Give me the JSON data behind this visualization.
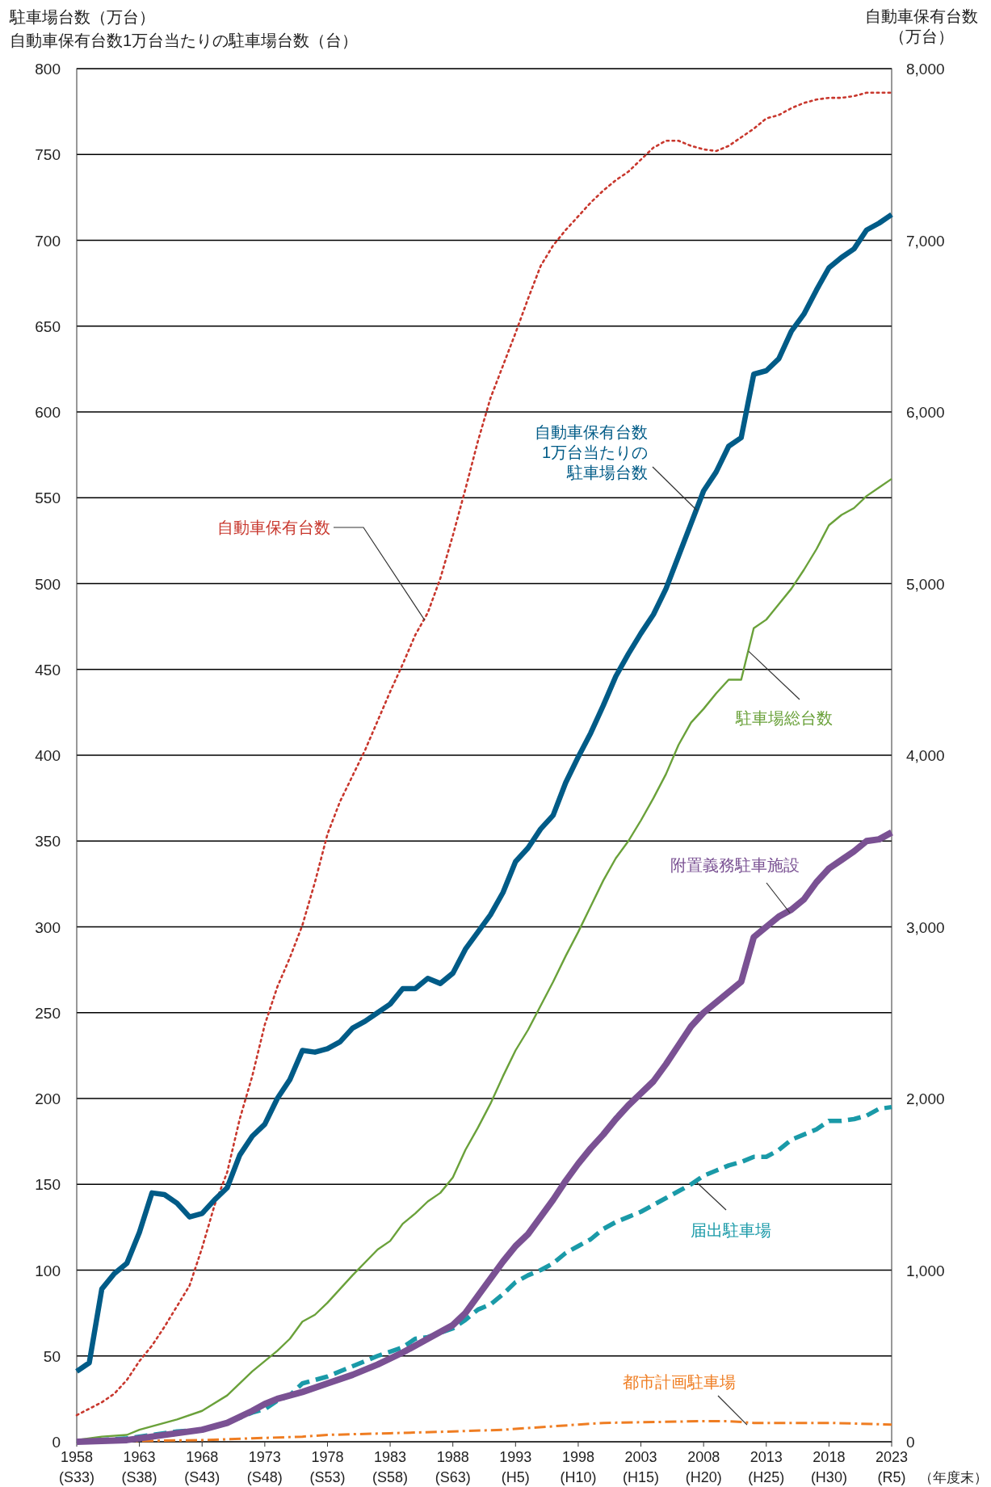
{
  "chart_data": {
    "type": "line",
    "ylabel": "駐車場台数（万台）",
    "y2label": "自動車保有台数（万台）",
    "xlim": [
      1958,
      2023
    ],
    "xticks": [
      1958,
      1963,
      1968,
      1973,
      1978,
      1983,
      1988,
      1993,
      1998,
      2003,
      2008,
      2013,
      2018,
      2023
    ],
    "ylim": [
      0,
      800
    ],
    "yticks": [
      0,
      50,
      100,
      150,
      200,
      250,
      300,
      350,
      400,
      450,
      500,
      550,
      600,
      650,
      700,
      750,
      800
    ],
    "y2lim": [
      0,
      8000
    ],
    "y2ticks": [
      0,
      {
        "value": 1000,
        "label": "1,000"
      },
      {
        "value": 2000,
        "label": "2,000"
      },
      {
        "value": 3000,
        "label": "3,000"
      },
      {
        "value": 4000,
        "label": "4,000"
      },
      {
        "value": 5000,
        "label": "5,000"
      },
      {
        "value": 6000,
        "label": "6,000"
      },
      {
        "value": 7000,
        "label": "7,000"
      },
      {
        "value": 8000,
        "label": "8,000"
      }
    ],
    "grid": "y",
    "annotations": [
      "(S33)",
      "(S38)",
      "(S43)",
      "(S48)",
      "(S53)",
      "(S58)",
      "(S63)",
      "(H5)",
      "(H10)",
      "(H15)",
      "(H20)",
      "(H25)",
      "(H30)",
      "(R5)",
      "（年度末）",
      "自動車保有台数1万台当たりの駐車場台数（台）"
    ],
    "series": [
      {
        "name": "自動車保有台数",
        "color": "#c8372d",
        "axis": "y2",
        "line_style": "dotted",
        "x": [
          1958,
          1960,
          1961,
          1962,
          1963,
          1964,
          1965,
          1966,
          1967,
          1968,
          1969,
          1970,
          1971,
          1972,
          1973,
          1974,
          1975,
          1976,
          1977,
          1978,
          1979,
          1980,
          1981,
          1982,
          1983,
          1984,
          1985,
          1986,
          1987,
          1988,
          1989,
          1990,
          1991,
          1992,
          1993,
          1994,
          1995,
          1996,
          1997,
          1998,
          1999,
          2000,
          2001,
          2002,
          2003,
          2004,
          2005,
          2006,
          2007,
          2008,
          2009,
          2010,
          2011,
          2012,
          2013,
          2014,
          2015,
          2016,
          2017,
          2018,
          2019,
          2020,
          2021,
          2022,
          2023
        ],
        "values": [
          155,
          230,
          280,
          360,
          470,
          560,
          670,
          790,
          910,
          1130,
          1380,
          1570,
          1880,
          2130,
          2430,
          2650,
          2820,
          3010,
          3260,
          3540,
          3730,
          3880,
          4030,
          4200,
          4370,
          4530,
          4700,
          4830,
          5030,
          5280,
          5550,
          5830,
          6080,
          6270,
          6460,
          6660,
          6850,
          6970,
          7060,
          7140,
          7220,
          7290,
          7350,
          7400,
          7470,
          7540,
          7580,
          7580,
          7550,
          7530,
          7520,
          7550,
          7600,
          7650,
          7710,
          7730,
          7770,
          7800,
          7820,
          7830,
          7830,
          7840,
          7860,
          7860,
          7860
        ]
      },
      {
        "name": "自動車保有台数1万台当たりの駐車場台数",
        "color": "#005b87",
        "line_style": "solid",
        "x": [
          1958,
          1959,
          1960,
          1961,
          1962,
          1963,
          1964,
          1965,
          1966,
          1967,
          1968,
          1969,
          1970,
          1971,
          1972,
          1973,
          1974,
          1975,
          1976,
          1977,
          1978,
          1979,
          1980,
          1981,
          1982,
          1983,
          1984,
          1985,
          1986,
          1987,
          1988,
          1989,
          1990,
          1991,
          1992,
          1993,
          1994,
          1995,
          1996,
          1997,
          1998,
          1999,
          2000,
          2001,
          2002,
          2003,
          2004,
          2005,
          2006,
          2007,
          2008,
          2009,
          2010,
          2011,
          2012,
          2013,
          2014,
          2015,
          2016,
          2017,
          2018,
          2019,
          2020,
          2021,
          2022,
          2023
        ],
        "values": [
          41,
          46,
          89,
          98,
          104,
          122,
          145,
          144,
          139,
          131,
          133,
          141,
          148,
          167,
          178,
          185,
          200,
          211,
          228,
          227,
          229,
          233,
          241,
          245,
          250,
          255,
          264,
          264,
          270,
          267,
          273,
          287,
          297,
          307,
          320,
          338,
          346,
          357,
          365,
          384,
          399,
          413,
          429,
          446,
          459,
          471,
          482,
          497,
          516,
          535,
          554,
          565,
          580,
          585,
          622,
          624,
          631,
          647,
          657,
          671,
          684,
          690,
          695,
          706,
          710,
          715
        ]
      },
      {
        "name": "駐車場総台数",
        "color": "#6aa13a",
        "line_style": "solid",
        "x": [
          1958,
          1960,
          1962,
          1963,
          1964,
          1966,
          1968,
          1970,
          1972,
          1974,
          1975,
          1976,
          1977,
          1978,
          1980,
          1982,
          1983,
          1984,
          1985,
          1986,
          1987,
          1988,
          1989,
          1990,
          1991,
          1992,
          1993,
          1994,
          1995,
          1996,
          1997,
          1998,
          1999,
          2000,
          2001,
          2002,
          2003,
          2004,
          2005,
          2006,
          2007,
          2008,
          2009,
          2010,
          2011,
          2012,
          2013,
          2014,
          2015,
          2016,
          2017,
          2018,
          2019,
          2020,
          2021,
          2022,
          2023
        ],
        "values": [
          1,
          3,
          4,
          7,
          9,
          13,
          18,
          27,
          41,
          53,
          60,
          70,
          74,
          81,
          97,
          112,
          117,
          127,
          133,
          140,
          145,
          154,
          170,
          183,
          197,
          213,
          228,
          240,
          254,
          268,
          283,
          297,
          312,
          327,
          340,
          350,
          362,
          375,
          389,
          406,
          419,
          427,
          436,
          444,
          444,
          474,
          479,
          488,
          497,
          508,
          520,
          534,
          540,
          544,
          551,
          556,
          561
        ]
      },
      {
        "name": "附置義務駐車施設",
        "color": "#7a5193",
        "line_style": "solid",
        "x": [
          1958,
          1962,
          1964,
          1966,
          1968,
          1970,
          1972,
          1973,
          1974,
          1976,
          1978,
          1980,
          1982,
          1984,
          1986,
          1988,
          1989,
          1990,
          1991,
          1992,
          1993,
          1994,
          1995,
          1996,
          1997,
          1998,
          1999,
          2000,
          2001,
          2002,
          2003,
          2004,
          2005,
          2006,
          2007,
          2008,
          2009,
          2010,
          2011,
          2012,
          2013,
          2014,
          2015,
          2016,
          2017,
          2018,
          2019,
          2020,
          2021,
          2022,
          2023
        ],
        "values": [
          0,
          1,
          3,
          5,
          7,
          11,
          18,
          22,
          25,
          29,
          34,
          39,
          45,
          52,
          60,
          68,
          75,
          85,
          95,
          105,
          114,
          121,
          131,
          141,
          152,
          162,
          171,
          179,
          188,
          196,
          203,
          210,
          220,
          231,
          242,
          250,
          256,
          262,
          268,
          294,
          300,
          306,
          310,
          316,
          326,
          334,
          339,
          344,
          350,
          351,
          355
        ]
      },
      {
        "name": "届出駐車場",
        "color": "#1a9aa8",
        "line_style": "dashed",
        "x": [
          1958,
          1962,
          1964,
          1966,
          1968,
          1970,
          1972,
          1973,
          1974,
          1975,
          1976,
          1978,
          1980,
          1982,
          1984,
          1985,
          1986,
          1988,
          1989,
          1990,
          1991,
          1992,
          1993,
          1994,
          1995,
          1996,
          1997,
          1998,
          1999,
          2000,
          2001,
          2002,
          2003,
          2004,
          2005,
          2006,
          2007,
          2008,
          2009,
          2010,
          2011,
          2012,
          2013,
          2014,
          2015,
          2016,
          2017,
          2018,
          2019,
          2020,
          2021,
          2022,
          2023
        ],
        "values": [
          0,
          2,
          4,
          6,
          7,
          11,
          17,
          19,
          24,
          27,
          34,
          38,
          44,
          50,
          55,
          60,
          61,
          66,
          71,
          77,
          80,
          86,
          93,
          97,
          100,
          104,
          110,
          114,
          118,
          124,
          128,
          131,
          134,
          138,
          142,
          146,
          150,
          155,
          158,
          161,
          163,
          166,
          166,
          170,
          176,
          179,
          182,
          187,
          187,
          188,
          190,
          194,
          195
        ]
      },
      {
        "name": "都市計画駐車場",
        "color": "#ef7d22",
        "line_style": "dashdot",
        "x": [
          1958,
          1968,
          1972,
          1976,
          1978,
          1983,
          1988,
          1992,
          1994,
          1998,
          2000,
          2008,
          2010,
          2012,
          2018,
          2023
        ],
        "values": [
          0,
          1,
          2,
          3,
          4,
          5,
          6,
          7,
          8,
          10,
          11,
          12,
          12,
          11,
          11,
          10
        ]
      }
    ]
  }
}
